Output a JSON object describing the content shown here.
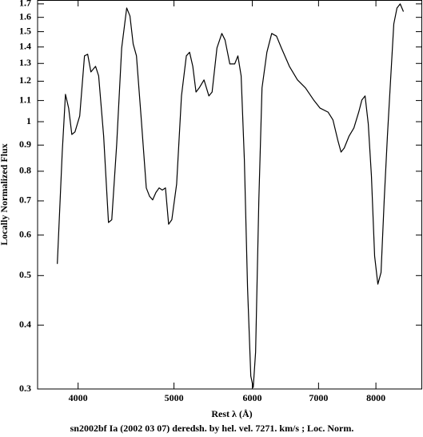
{
  "chart_data": {
    "type": "line",
    "title": "sn2002bf Ia (2002 03 07) deredsh. by hel. vel.  7271. km/s ;  Loc. Norm.",
    "x_label": "Rest λ (Å)",
    "y_label": "Locally Normalized Flux",
    "x": [
      3811,
      3855,
      3884,
      3913,
      3942,
      3971,
      4015,
      4060,
      4090,
      4121,
      4166,
      4196,
      4245,
      4293,
      4326,
      4376,
      4427,
      4479,
      4513,
      4547,
      4582,
      4634,
      4688,
      4723,
      4758,
      4794,
      4830,
      4866,
      4902,
      4938,
      4975,
      5031,
      5088,
      5146,
      5185,
      5224,
      5263,
      5302,
      5362,
      5423,
      5464,
      5526,
      5589,
      5631,
      5694,
      5759,
      5802,
      5846,
      5890,
      5934,
      5979,
      6013,
      6046,
      6092,
      6137,
      6207,
      6277,
      6348,
      6420,
      6541,
      6665,
      6791,
      6920,
      7025,
      7157,
      7239,
      7321,
      7376,
      7431,
      7515,
      7600,
      7686,
      7743,
      7801,
      7859,
      7917,
      7976,
      8036,
      8096,
      8156,
      8217,
      8278,
      8340,
      8402,
      8465,
      8529
    ],
    "values": [
      0.527,
      0.872,
      1.131,
      1.063,
      0.944,
      0.955,
      1.026,
      1.345,
      1.355,
      1.251,
      1.283,
      1.229,
      0.937,
      0.635,
      0.643,
      0.904,
      1.394,
      1.669,
      1.61,
      1.419,
      1.345,
      1.008,
      0.742,
      0.715,
      0.703,
      0.727,
      0.742,
      0.735,
      0.742,
      0.63,
      0.643,
      0.755,
      1.123,
      1.345,
      1.367,
      1.283,
      1.143,
      1.164,
      1.207,
      1.123,
      1.143,
      1.394,
      1.488,
      1.445,
      1.297,
      1.297,
      1.345,
      1.229,
      0.842,
      0.473,
      0.318,
      0.302,
      0.354,
      0.703,
      1.164,
      1.367,
      1.488,
      1.47,
      1.394,
      1.283,
      1.207,
      1.164,
      1.103,
      1.063,
      1.044,
      1.008,
      0.92,
      0.872,
      0.888,
      0.937,
      0.972,
      1.044,
      1.103,
      1.123,
      0.99,
      0.783,
      0.546,
      0.481,
      0.507,
      0.703,
      0.937,
      1.207,
      1.553,
      1.669,
      1.7,
      1.642
    ],
    "color": "#000000",
    "log_x": true,
    "log_y": true,
    "xlim": [
      3640,
      8910
    ],
    "ylim": [
      0.3,
      1.73
    ],
    "xticks": [
      4000,
      5000,
      6000,
      7000,
      8000
    ],
    "yticks": [
      0.3,
      0.4,
      0.5,
      0.6,
      0.7,
      0.8,
      0.9,
      1,
      1.1,
      1.2,
      1.3,
      1.4,
      1.5,
      1.6,
      1.7
    ]
  }
}
